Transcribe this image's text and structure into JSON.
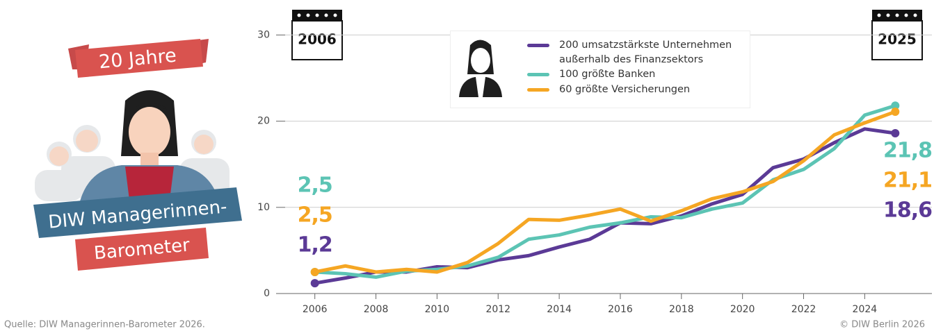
{
  "chart_data": {
    "type": "line",
    "x": [
      2006,
      2007,
      2008,
      2009,
      2010,
      2011,
      2012,
      2013,
      2014,
      2015,
      2016,
      2017,
      2018,
      2019,
      2020,
      2021,
      2022,
      2023,
      2024,
      2025
    ],
    "series": [
      {
        "name": "200 umsatzstärkste Unternehmen außerhalb des Finanzsektors",
        "color": "#5b3a96",
        "values": [
          1.2,
          1.8,
          2.5,
          2.5,
          3.1,
          3.0,
          3.9,
          4.4,
          5.4,
          6.3,
          8.2,
          8.1,
          9.0,
          10.4,
          11.5,
          14.6,
          15.6,
          17.5,
          19.1,
          18.6
        ],
        "value_labels": [
          "1,2",
          null,
          null,
          null,
          null,
          null,
          null,
          null,
          null,
          null,
          null,
          null,
          null,
          null,
          null,
          null,
          null,
          null,
          null,
          "18,6"
        ]
      },
      {
        "name": "100 größte Banken",
        "color": "#5cc4b4",
        "values": [
          2.5,
          2.3,
          1.9,
          2.6,
          2.8,
          3.2,
          4.2,
          6.3,
          6.8,
          7.7,
          8.2,
          8.9,
          8.8,
          9.8,
          10.5,
          13.2,
          14.4,
          16.8,
          20.7,
          21.8
        ],
        "value_labels": [
          "2,5",
          null,
          null,
          null,
          null,
          null,
          null,
          null,
          null,
          null,
          null,
          null,
          null,
          null,
          null,
          null,
          null,
          null,
          null,
          "21,8"
        ]
      },
      {
        "name": "60 größte Versicherungen",
        "color": "#f5a623",
        "values": [
          2.5,
          3.2,
          2.5,
          2.8,
          2.5,
          3.6,
          5.8,
          8.6,
          8.5,
          9.1,
          9.8,
          8.4,
          9.6,
          11.0,
          11.8,
          13.0,
          15.4,
          18.4,
          19.8,
          21.1
        ],
        "value_labels": [
          "2,5",
          null,
          null,
          null,
          null,
          null,
          null,
          null,
          null,
          null,
          null,
          null,
          null,
          null,
          null,
          null,
          null,
          null,
          null,
          "21,1"
        ]
      }
    ],
    "xlim": [
      2004.8,
      2026.2
    ],
    "xticks": [
      2006,
      2008,
      2010,
      2012,
      2014,
      2016,
      2018,
      2020,
      2022,
      2024
    ],
    "ylim": [
      0,
      31
    ],
    "yticks": [
      0,
      10,
      20,
      30
    ],
    "grid": true,
    "calendars": [
      "2006",
      "2025"
    ]
  },
  "badge": {
    "title": "20 Jahre",
    "line1": "DIW Managerinnen-",
    "line2": "Barometer"
  },
  "footer": {
    "source": "Quelle: DIW Managerinnen-Barometer 2026.",
    "copyright": "© DIW Berlin 2026"
  }
}
